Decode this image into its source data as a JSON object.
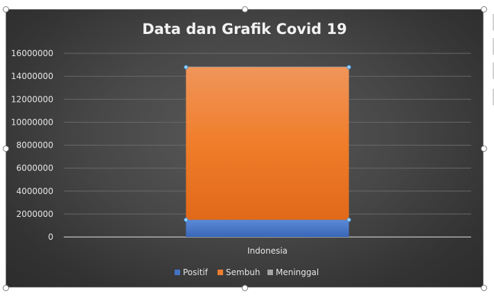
{
  "chart_data": {
    "type": "bar",
    "stacked": true,
    "title": "Data dan Grafik Covid 19",
    "categories": [
      "Indonesia"
    ],
    "series": [
      {
        "name": "Positif",
        "values": [
          1500000
        ],
        "color": "#4472C4"
      },
      {
        "name": "Sembuh",
        "values": [
          13300000
        ],
        "color": "#ED7D31"
      },
      {
        "name": "Meninggal",
        "values": [
          40000
        ],
        "color": "#A5A5A5"
      }
    ],
    "yticks": [
      "0",
      "2000000",
      "4000000",
      "6000000",
      "8000000",
      "10000000",
      "12000000",
      "14000000",
      "16000000"
    ],
    "ylim": [
      0,
      16000000
    ],
    "grid": true,
    "legend_position": "bottom"
  }
}
